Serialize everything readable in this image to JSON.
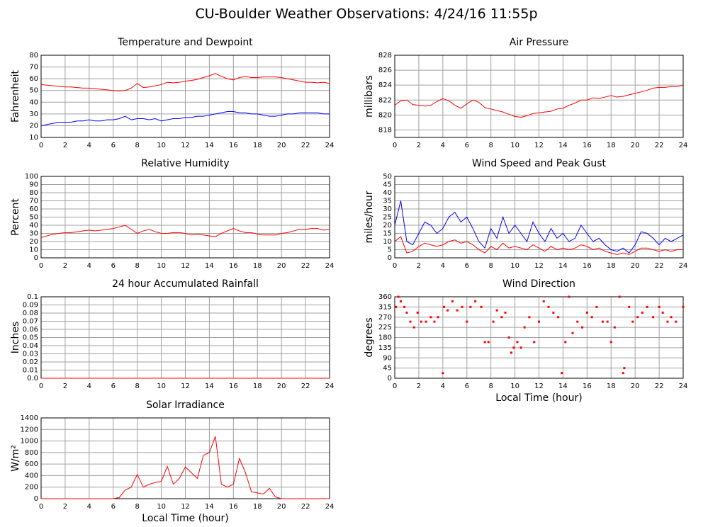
{
  "title": "CU-Boulder Weather Observations: 4/24/16 11:55p",
  "chart_data": [
    {
      "type": "line",
      "title": "Temperature and Dewpoint",
      "y_label": "Fahrenheit",
      "x": [
        0,
        0.5,
        1,
        1.5,
        2,
        2.5,
        3,
        3.5,
        4,
        4.5,
        5,
        5.5,
        6,
        6.5,
        7,
        7.5,
        8,
        8.5,
        9,
        9.5,
        10,
        10.5,
        11,
        11.5,
        12,
        12.5,
        13,
        13.5,
        14,
        14.5,
        15,
        15.5,
        16,
        16.5,
        17,
        17.5,
        18,
        18.5,
        19,
        19.5,
        20,
        20.5,
        21,
        21.5,
        22,
        22.5,
        23,
        23.5,
        24
      ],
      "series": [
        {
          "color": "#ff0000",
          "values": [
            55,
            54.5,
            54,
            53.5,
            53,
            53,
            52.5,
            52,
            52,
            51.5,
            51,
            50.5,
            50,
            49.5,
            50,
            52,
            56,
            52.5,
            53,
            54,
            55,
            57,
            56.5,
            57,
            58,
            58.5,
            59.5,
            61,
            62.5,
            64.5,
            62,
            60,
            59,
            61,
            62,
            61,
            61,
            61.5,
            61.5,
            61.5,
            61,
            60,
            59,
            58,
            57,
            57,
            56.5,
            57,
            56
          ]
        },
        {
          "color": "#0000ff",
          "values": [
            20,
            21,
            22,
            23,
            23,
            23,
            24,
            24,
            25,
            24,
            24,
            25,
            25,
            26,
            28,
            25,
            26,
            26,
            25,
            26,
            24,
            25,
            26,
            26,
            27,
            27,
            28,
            28,
            29,
            30,
            31,
            32,
            32,
            31,
            31,
            30,
            30,
            29,
            28,
            28,
            29,
            30,
            30,
            31,
            31,
            31,
            31,
            30,
            30
          ]
        }
      ],
      "xlim": [
        0,
        24
      ],
      "xticks": [
        0,
        2,
        4,
        6,
        8,
        10,
        12,
        14,
        16,
        18,
        20,
        22,
        24
      ],
      "ylim": [
        10,
        80
      ],
      "yticks": [
        10,
        20,
        30,
        40,
        50,
        60,
        70,
        80
      ],
      "grid": true
    },
    {
      "type": "line",
      "title": "Air Pressure",
      "y_label": "millibars",
      "x": [
        0,
        0.5,
        1,
        1.5,
        2,
        2.5,
        3,
        3.5,
        4,
        4.5,
        5,
        5.5,
        6,
        6.5,
        7,
        7.5,
        8,
        8.5,
        9,
        9.5,
        10,
        10.5,
        11,
        11.5,
        12,
        12.5,
        13,
        13.5,
        14,
        14.5,
        15,
        15.5,
        16,
        16.5,
        17,
        17.5,
        18,
        18.5,
        19,
        19.5,
        20,
        20.5,
        21,
        21.5,
        22,
        22.5,
        23,
        23.5,
        24
      ],
      "series": [
        {
          "color": "#ff0000",
          "values": [
            821.3,
            821.9,
            822.0,
            821.4,
            821.3,
            821.2,
            821.3,
            821.8,
            822.2,
            821.9,
            821.3,
            820.9,
            821.5,
            822.0,
            821.7,
            821.0,
            820.8,
            820.6,
            820.4,
            820.1,
            819.8,
            819.7,
            819.9,
            820.2,
            820.3,
            820.4,
            820.5,
            820.8,
            820.9,
            821.3,
            821.6,
            822.0,
            822.0,
            822.3,
            822.2,
            822.4,
            822.6,
            822.4,
            822.5,
            822.7,
            822.9,
            823.1,
            823.3,
            823.6,
            823.7,
            823.7,
            823.8,
            823.8,
            824.0
          ]
        }
      ],
      "xlim": [
        0,
        24
      ],
      "xticks": [
        0,
        2,
        4,
        6,
        8,
        10,
        12,
        14,
        16,
        18,
        20,
        22,
        24
      ],
      "ylim": [
        817,
        828
      ],
      "yticks": [
        818,
        820,
        822,
        824,
        826,
        828
      ],
      "grid": true
    },
    {
      "type": "line",
      "title": "Relative Humidity",
      "y_label": "Percent",
      "x": [
        0,
        0.5,
        1,
        1.5,
        2,
        2.5,
        3,
        3.5,
        4,
        4.5,
        5,
        5.5,
        6,
        6.5,
        7,
        7.5,
        8,
        8.5,
        9,
        9.5,
        10,
        10.5,
        11,
        11.5,
        12,
        12.5,
        13,
        13.5,
        14,
        14.5,
        15,
        15.5,
        16,
        16.5,
        17,
        17.5,
        18,
        18.5,
        19,
        19.5,
        20,
        20.5,
        21,
        21.5,
        22,
        22.5,
        23,
        23.5,
        24
      ],
      "series": [
        {
          "color": "#ff0000",
          "values": [
            25,
            27,
            29,
            30,
            31,
            31,
            32,
            33,
            34,
            33,
            34,
            35,
            36,
            38,
            40,
            35,
            30,
            33,
            35,
            32,
            30,
            30,
            31,
            31,
            30,
            28,
            29,
            28,
            27,
            26,
            30,
            33,
            36,
            33,
            31,
            31,
            29,
            28,
            28,
            28,
            30,
            31,
            33,
            35,
            35,
            36,
            36,
            34,
            35
          ]
        }
      ],
      "xlim": [
        0,
        24
      ],
      "xticks": [
        0,
        2,
        4,
        6,
        8,
        10,
        12,
        14,
        16,
        18,
        20,
        22,
        24
      ],
      "ylim": [
        0,
        100
      ],
      "yticks": [
        0,
        10,
        20,
        30,
        40,
        50,
        60,
        70,
        80,
        90,
        100
      ],
      "grid": true
    },
    {
      "type": "line",
      "title": "Wind Speed and Peak Gust",
      "y_label": "miles/hour",
      "x": [
        0,
        0.5,
        1,
        1.5,
        2,
        2.5,
        3,
        3.5,
        4,
        4.5,
        5,
        5.5,
        6,
        6.5,
        7,
        7.5,
        8,
        8.5,
        9,
        9.5,
        10,
        10.5,
        11,
        11.5,
        12,
        12.5,
        13,
        13.5,
        14,
        14.5,
        15,
        15.5,
        16,
        16.5,
        17,
        17.5,
        18,
        18.5,
        19,
        19.5,
        20,
        20.5,
        21,
        21.5,
        22,
        22.5,
        23,
        23.5,
        24
      ],
      "series": [
        {
          "color": "#0000ff",
          "values": [
            20,
            35,
            10,
            8,
            15,
            22,
            20,
            15,
            18,
            25,
            28,
            22,
            25,
            18,
            10,
            6,
            18,
            12,
            25,
            15,
            20,
            15,
            10,
            22,
            15,
            10,
            18,
            12,
            15,
            10,
            12,
            20,
            15,
            10,
            12,
            8,
            5,
            4,
            6,
            3,
            8,
            16,
            15,
            12,
            8,
            12,
            10,
            12,
            14
          ]
        },
        {
          "color": "#ff0000",
          "values": [
            10,
            13,
            3,
            4,
            7,
            9,
            8,
            7,
            8,
            10,
            11,
            9,
            10,
            8,
            5,
            3,
            7,
            5,
            9,
            6,
            7,
            6,
            5,
            8,
            6,
            4,
            7,
            5,
            6,
            5,
            6,
            8,
            7,
            5,
            6,
            4,
            3,
            2,
            3,
            2,
            4,
            6,
            6,
            5,
            4,
            5,
            4,
            5,
            5
          ]
        }
      ],
      "xlim": [
        0,
        24
      ],
      "xticks": [
        0,
        2,
        4,
        6,
        8,
        10,
        12,
        14,
        16,
        18,
        20,
        22,
        24
      ],
      "ylim": [
        0,
        50
      ],
      "yticks": [
        0,
        5,
        10,
        15,
        20,
        25,
        30,
        35,
        40,
        45,
        50
      ],
      "grid": true
    },
    {
      "type": "line",
      "title": "24 hour Accumulated Rainfall",
      "y_label": "Inches",
      "x": [
        0,
        24
      ],
      "series": [
        {
          "color": "#ff0000",
          "values": [
            0,
            0
          ]
        }
      ],
      "xlim": [
        0,
        24
      ],
      "xticks": [
        0,
        2,
        4,
        6,
        8,
        10,
        12,
        14,
        16,
        18,
        20,
        22,
        24
      ],
      "ylim": [
        0,
        0.1
      ],
      "yticks": [
        {
          "value": 0,
          "label": "0.0"
        },
        0.01,
        0.02,
        0.03,
        0.04,
        0.05,
        0.06,
        0.07,
        0.08,
        0.09,
        0.1
      ],
      "grid": true
    },
    {
      "type": "scatter",
      "title": "Wind Direction",
      "y_label": "degrees",
      "x_label": "Local Time (hour)",
      "x": [
        0.1,
        0.3,
        0.5,
        0.8,
        1,
        1.3,
        1.6,
        1.9,
        2.2,
        2.6,
        3,
        3.3,
        3.6,
        4,
        4.1,
        4.4,
        4.8,
        5.2,
        5.6,
        6,
        6.3,
        6.7,
        7.2,
        7.5,
        7.8,
        8.2,
        8.5,
        8.9,
        9.2,
        9.5,
        9.7,
        9.9,
        10.2,
        10.5,
        10.8,
        11.2,
        11.6,
        12,
        12.4,
        12.8,
        13.2,
        13.6,
        13.9,
        14.2,
        14.5,
        14.8,
        15.2,
        15.6,
        16,
        16.4,
        16.8,
        17.3,
        17.7,
        18,
        18.3,
        18.7,
        19,
        19.1,
        19.5,
        19.8,
        20.2,
        20.6,
        21,
        21.5,
        22,
        22.3,
        22.7,
        23,
        23.4,
        24
      ],
      "values": [
        315,
        360,
        340,
        315,
        290,
        250,
        225,
        290,
        250,
        250,
        270,
        250,
        270,
        23,
        315,
        300,
        340,
        300,
        315,
        250,
        315,
        340,
        315,
        160,
        160,
        250,
        300,
        270,
        290,
        180,
        113,
        135,
        160,
        135,
        225,
        270,
        160,
        250,
        340,
        315,
        290,
        270,
        23,
        160,
        360,
        200,
        250,
        225,
        290,
        270,
        315,
        250,
        250,
        160,
        225,
        360,
        23,
        45,
        315,
        250,
        270,
        290,
        315,
        270,
        315,
        290,
        250,
        270,
        250,
        315
      ],
      "color": "#ff0000",
      "xlim": [
        0,
        24
      ],
      "xticks": [
        0,
        2,
        4,
        6,
        8,
        10,
        12,
        14,
        16,
        18,
        20,
        22,
        24
      ],
      "ylim": [
        0,
        360
      ],
      "yticks": [
        0,
        45,
        90,
        135,
        180,
        225,
        270,
        315,
        360
      ],
      "grid": true
    },
    {
      "type": "line",
      "title": "Solar Irradiance",
      "y_label": "W/m²",
      "x_label": "Local Time (hour)",
      "x": [
        0,
        0.5,
        1,
        1.5,
        2,
        2.5,
        3,
        3.5,
        4,
        4.5,
        5,
        5.5,
        6,
        6.5,
        7,
        7.5,
        8,
        8.5,
        9,
        9.5,
        10,
        10.5,
        11,
        11.5,
        12,
        12.5,
        13,
        13.5,
        14,
        14.5,
        15,
        15.5,
        16,
        16.5,
        17,
        17.5,
        18,
        18.5,
        19,
        19.5,
        20,
        20.5,
        21,
        21.5,
        22,
        22.5,
        23,
        23.5,
        24
      ],
      "series": [
        {
          "color": "#ff0000",
          "values": [
            0,
            0,
            0,
            0,
            0,
            0,
            0,
            0,
            0,
            0,
            0,
            0,
            0,
            20,
            150,
            200,
            420,
            200,
            250,
            280,
            300,
            560,
            250,
            350,
            550,
            450,
            350,
            750,
            800,
            1080,
            250,
            200,
            250,
            700,
            450,
            120,
            100,
            80,
            180,
            30,
            0,
            0,
            0,
            0,
            0,
            0,
            0,
            0,
            0
          ]
        }
      ],
      "xlim": [
        0,
        24
      ],
      "xticks": [
        0,
        2,
        4,
        6,
        8,
        10,
        12,
        14,
        16,
        18,
        20,
        22,
        24
      ],
      "ylim": [
        0,
        1400
      ],
      "yticks": [
        0,
        200,
        400,
        600,
        800,
        1000,
        1200,
        1400
      ],
      "grid": true
    }
  ]
}
